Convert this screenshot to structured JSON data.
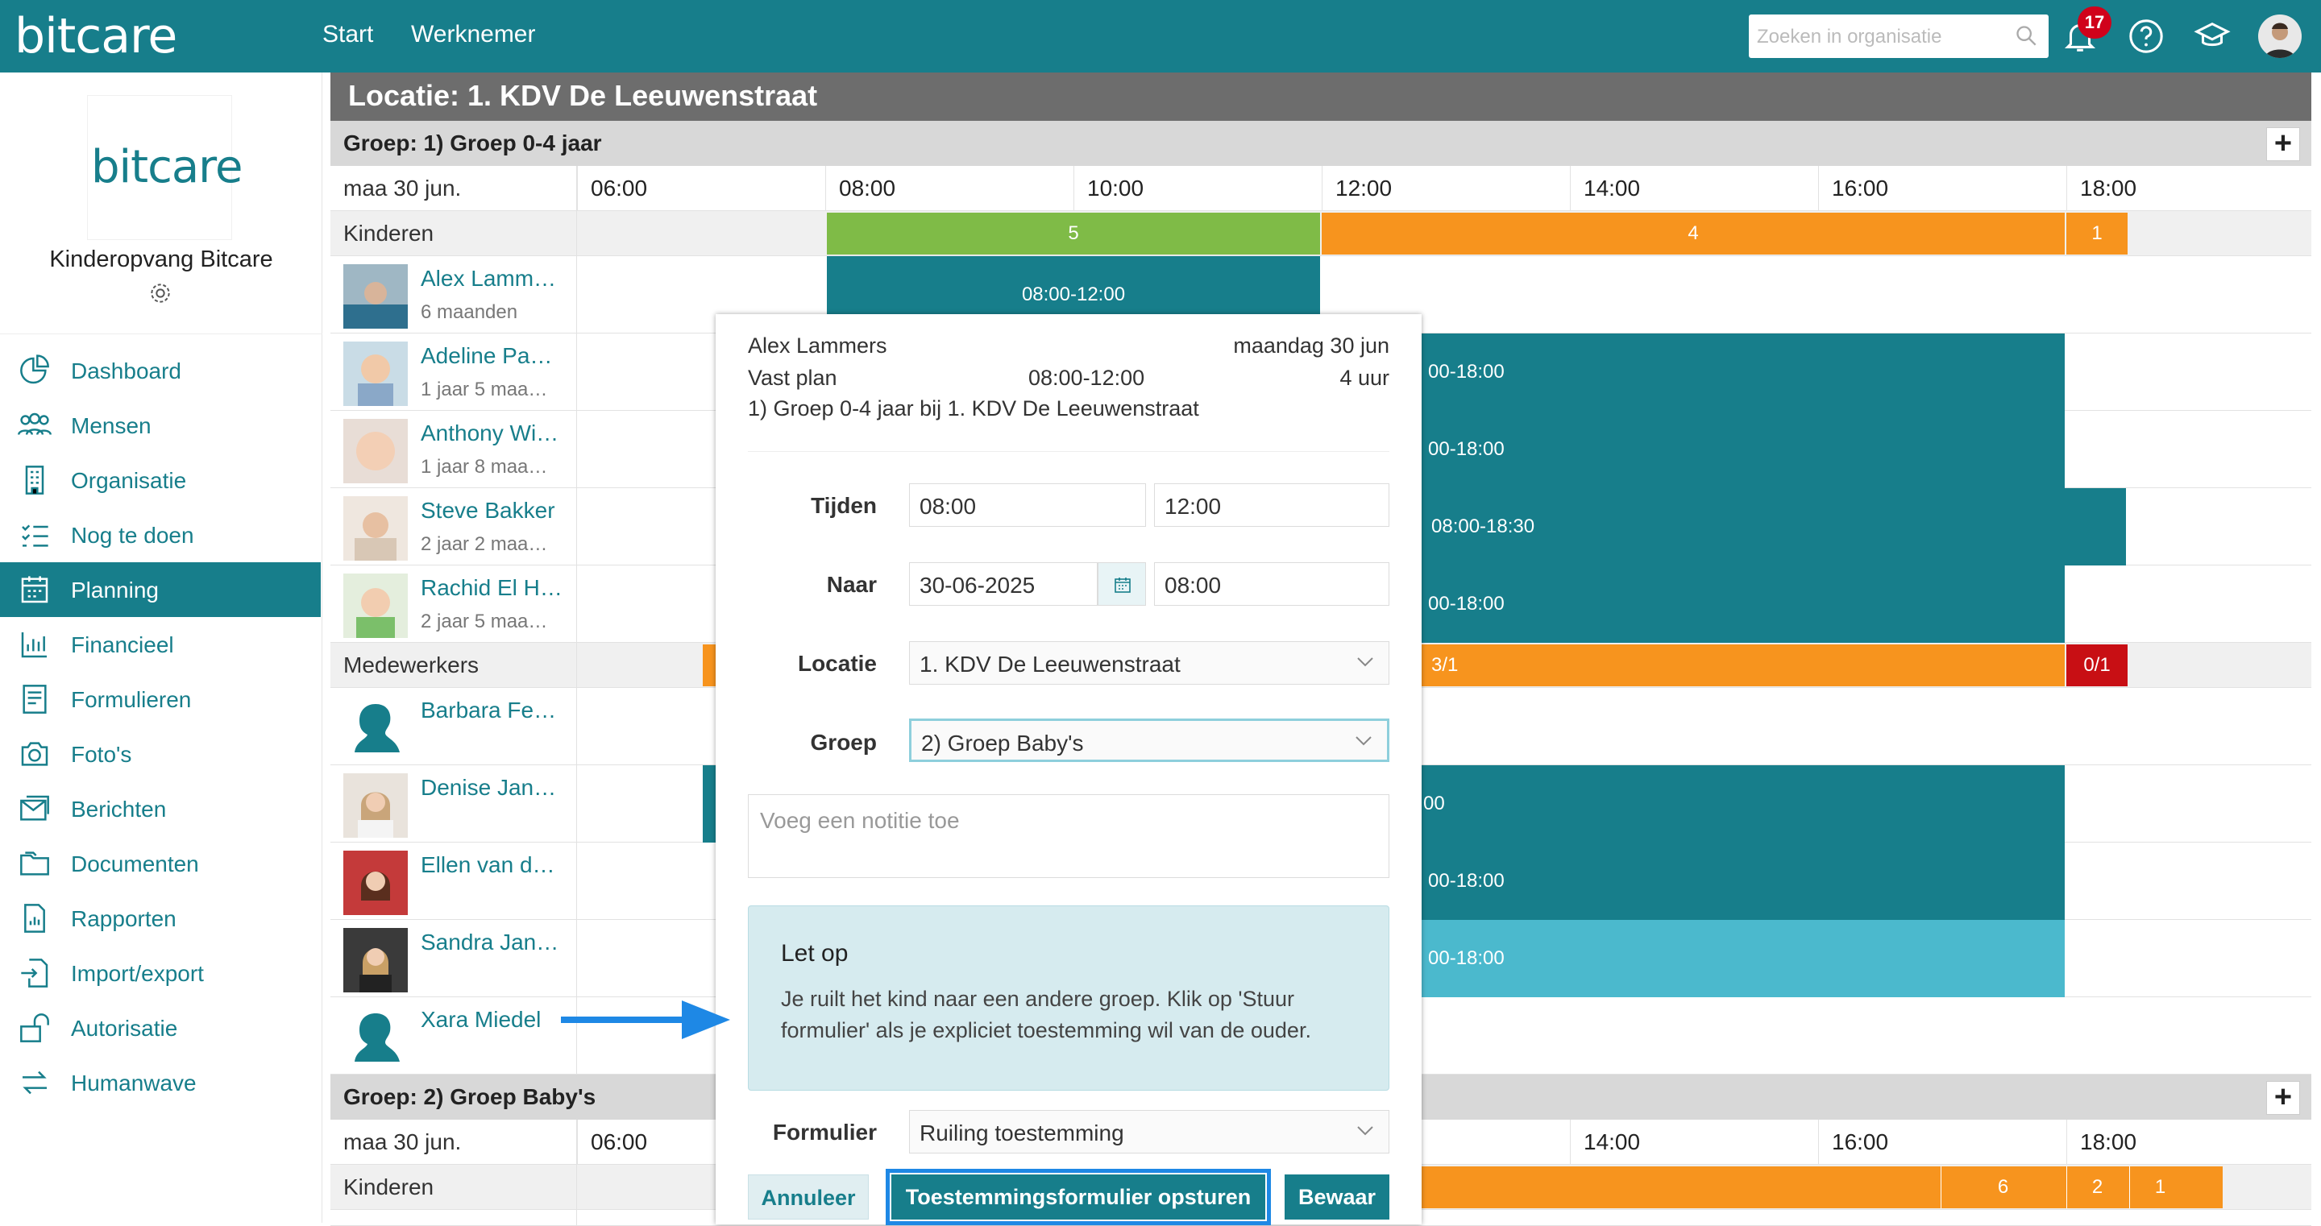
{
  "topbar": {
    "logo": "bitcare",
    "nav": [
      "Start",
      "Werknemer"
    ],
    "search_placeholder": "Zoeken in organisatie",
    "notification_count": "17",
    "icons": [
      "bell-icon",
      "help-icon",
      "graduation-cap-icon",
      "user-avatar"
    ]
  },
  "sidebar": {
    "logo": "bitcare",
    "org_name": "Kinderopvang Bitcare",
    "items": [
      {
        "label": "Dashboard",
        "icon": "pie-chart-icon"
      },
      {
        "label": "Mensen",
        "icon": "people-icon"
      },
      {
        "label": "Organisatie",
        "icon": "building-icon"
      },
      {
        "label": "Nog te doen",
        "icon": "checklist-icon"
      },
      {
        "label": "Planning",
        "icon": "calendar-icon"
      },
      {
        "label": "Financieel",
        "icon": "bar-chart-icon"
      },
      {
        "label": "Formulieren",
        "icon": "form-icon"
      },
      {
        "label": "Foto's",
        "icon": "camera-icon"
      },
      {
        "label": "Berichten",
        "icon": "mail-icon"
      },
      {
        "label": "Documenten",
        "icon": "folder-icon"
      },
      {
        "label": "Rapporten",
        "icon": "report-icon"
      },
      {
        "label": "Import/export",
        "icon": "import-icon"
      },
      {
        "label": "Autorisatie",
        "icon": "lock-icon"
      },
      {
        "label": "Humanwave",
        "icon": "transfer-icon"
      }
    ],
    "active": "Planning"
  },
  "main": {
    "location_title": "Locatie: 1. KDV De Leeuwenstraat",
    "group1": {
      "title": "Groep: 1) Groep 0-4 jaar",
      "date": "maa 30 jun.",
      "times": [
        "06:00",
        "08:00",
        "10:00",
        "12:00",
        "14:00",
        "16:00",
        "18:00"
      ],
      "kids_label": "Kinderen",
      "kids_counts": [
        "5",
        "4",
        "1"
      ],
      "children": [
        {
          "name": "Alex Lamm…",
          "age": "6 maanden",
          "shift": "08:00-12:00"
        },
        {
          "name": "Adeline Pa…",
          "age": "1 jaar 5 maa…",
          "shift": "00-18:00"
        },
        {
          "name": "Anthony Wi…",
          "age": "1 jaar 8 maa…",
          "shift": "00-18:00"
        },
        {
          "name": "Steve Bakker",
          "age": "2 jaar 2 maa…",
          "shift": "08:00-18:30"
        },
        {
          "name": "Rachid El H…",
          "age": "2 jaar 5 maa…",
          "shift": "00-18:00"
        }
      ],
      "staff_label": "Medewerkers",
      "staff_counts": [
        "3/1",
        "0/1"
      ],
      "staff": [
        {
          "name": "Barbara Fe…",
          "shift": ""
        },
        {
          "name": "Denise Jan…",
          "shift": "00"
        },
        {
          "name": "Ellen van d…",
          "shift": "00-18:00"
        },
        {
          "name": "Sandra Jan…",
          "shift": "00-18:00"
        },
        {
          "name": "Xara Miedel",
          "shift": ""
        }
      ]
    },
    "group2": {
      "title": "Groep: 2) Groep Baby's",
      "date": "maa 30 jun.",
      "times": [
        "06:00",
        "14:00",
        "16:00",
        "18:00"
      ],
      "kids_label": "Kinderen",
      "kids_counts": [
        "6",
        "2",
        "1"
      ]
    }
  },
  "popup": {
    "child": "Alex Lammers",
    "date": "maandag 30 jun",
    "plan": "Vast plan",
    "time_range": "08:00-12:00",
    "hours": "4 uur",
    "group_info": "1) Groep 0-4 jaar bij 1. KDV De Leeuwenstraat",
    "tijden_label": "Tijden",
    "tijden_from": "08:00",
    "tijden_to": "12:00",
    "naar_label": "Naar",
    "naar_date": "30-06-2025",
    "naar_time": "08:00",
    "locatie_label": "Locatie",
    "locatie_value": "1. KDV De Leeuwenstraat",
    "groep_label": "Groep",
    "groep_value": "2) Groep Baby's",
    "note_placeholder": "Voeg een notitie toe",
    "alert_title": "Let op",
    "alert_message": "Je ruilt het kind naar een andere groep. Klik op 'Stuur formulier' als je expliciet toestemming wil van de ouder.",
    "formulier_label": "Formulier",
    "formulier_value": "Ruiling toestemming",
    "cancel_label": "Annuleer",
    "send_label": "Toestemmingsformulier opsturen",
    "save_label": "Bewaar"
  },
  "colors": {
    "brand": "#177e8b",
    "green": "#7fbb47",
    "orange": "#f7941e",
    "red": "#c80f14",
    "light_teal": "#4bb9cd",
    "annotation_arrow": "#1e88e5"
  }
}
